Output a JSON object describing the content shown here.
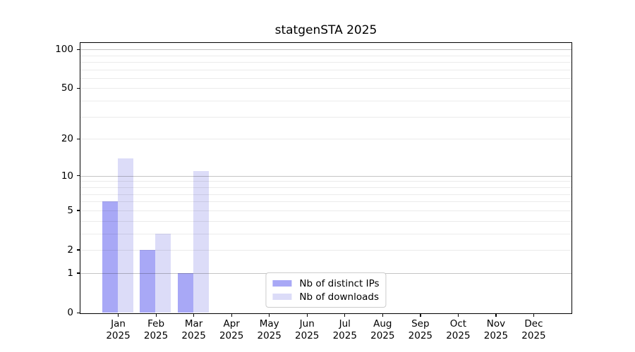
{
  "title": "statgenSTA 2025",
  "chart_data": {
    "type": "bar",
    "title": "statgenSTA 2025",
    "categories": [
      "Jan",
      "Feb",
      "Mar",
      "Apr",
      "May",
      "Jun",
      "Jul",
      "Aug",
      "Sep",
      "Oct",
      "Nov",
      "Dec"
    ],
    "category_year": "2025",
    "series": [
      {
        "name": "Nb of distinct IPs",
        "color": "#a8a8f6",
        "values": [
          6,
          2,
          1,
          0,
          0,
          0,
          0,
          0,
          0,
          0,
          0,
          0
        ]
      },
      {
        "name": "Nb of downloads",
        "color": "#dcdcf8",
        "values": [
          14,
          3,
          11,
          0,
          0,
          0,
          0,
          0,
          0,
          0,
          0,
          0
        ]
      }
    ],
    "yscale": "log1p",
    "ylim": [
      0,
      112
    ],
    "y_ticks": [
      0,
      1,
      2,
      5,
      10,
      20,
      50,
      100
    ],
    "y_major_grid": [
      1,
      10,
      100
    ],
    "y_minor_grid": [
      2,
      3,
      4,
      5,
      6,
      7,
      8,
      9,
      20,
      30,
      40,
      50,
      60,
      70,
      80,
      90
    ],
    "grid": true,
    "legend_position": "lower center"
  },
  "colors": {
    "major_grid": "#c4c4c4",
    "minor_grid": "#ebebeb",
    "axis": "#000000",
    "background": "#ffffff"
  }
}
